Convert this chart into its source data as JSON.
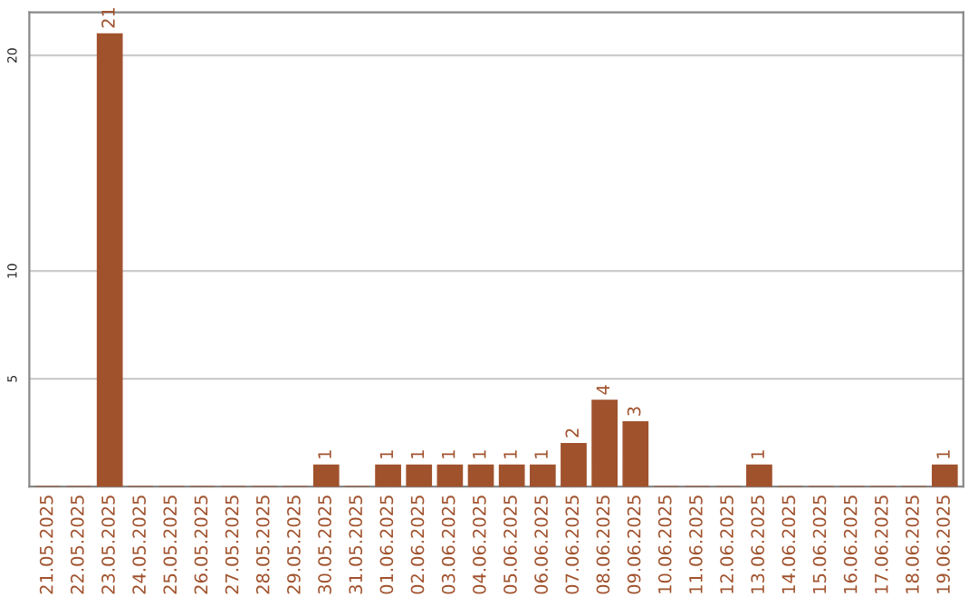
{
  "chart_data": {
    "type": "bar",
    "categories": [
      "21.05.2025",
      "22.05.2025",
      "23.05.2025",
      "24.05.2025",
      "25.05.2025",
      "26.05.2025",
      "27.05.2025",
      "28.05.2025",
      "29.05.2025",
      "30.05.2025",
      "31.05.2025",
      "01.06.2025",
      "02.06.2025",
      "03.06.2025",
      "04.06.2025",
      "05.06.2025",
      "06.06.2025",
      "07.06.2025",
      "08.06.2025",
      "09.06.2025",
      "10.06.2025",
      "11.06.2025",
      "12.06.2025",
      "13.06.2025",
      "14.06.2025",
      "15.06.2025",
      "16.06.2025",
      "17.06.2025",
      "18.06.2025",
      "19.06.2025"
    ],
    "values": [
      0,
      0,
      21,
      0,
      0,
      0,
      0,
      0,
      0,
      1,
      0,
      1,
      1,
      1,
      1,
      1,
      1,
      2,
      4,
      3,
      0,
      0,
      0,
      1,
      0,
      0,
      0,
      0,
      0,
      1
    ],
    "value_labels": [
      null,
      null,
      "21",
      null,
      null,
      null,
      null,
      null,
      null,
      "1",
      null,
      "1",
      "1",
      "1",
      "1",
      "1",
      "1",
      "2",
      "4",
      "3",
      null,
      null,
      null,
      "1",
      null,
      null,
      null,
      null,
      null,
      "1"
    ],
    "color": "#a0522d",
    "ylim": [
      0,
      22
    ],
    "yticks": [
      5,
      10,
      20
    ],
    "grid": "y"
  }
}
